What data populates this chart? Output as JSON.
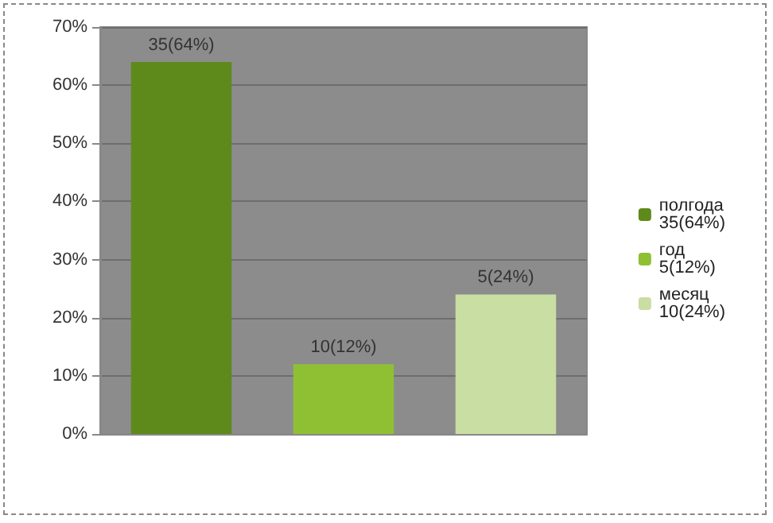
{
  "chart_data": {
    "type": "bar",
    "categories": [
      null,
      null,
      null
    ],
    "series": [
      {
        "name": "полгода 35(64%)",
        "color": "#5e8a1c",
        "values": [
          64,
          null,
          null
        ],
        "value_labels": [
          "35(64%)",
          null,
          null
        ]
      },
      {
        "name": "год 5(12%)",
        "color": "#8fc034",
        "values": [
          null,
          12,
          null
        ],
        "value_labels": [
          null,
          "10(12%)",
          null
        ]
      },
      {
        "name": "месяц 10(24%)",
        "color": "#c9dea3",
        "values": [
          null,
          null,
          24
        ],
        "value_labels": [
          null,
          null,
          "5(24%)"
        ]
      }
    ],
    "ylim": [
      0,
      70
    ],
    "yticks": [
      {
        "value": 0,
        "label": "0%"
      },
      {
        "value": 10,
        "label": "10%"
      },
      {
        "value": 20,
        "label": "20%"
      },
      {
        "value": 30,
        "label": "30%"
      },
      {
        "value": 40,
        "label": "40%"
      },
      {
        "value": 50,
        "label": "50%"
      },
      {
        "value": 60,
        "label": "60%"
      },
      {
        "value": 70,
        "label": "70%"
      }
    ],
    "grid": "y",
    "legend": "right"
  }
}
